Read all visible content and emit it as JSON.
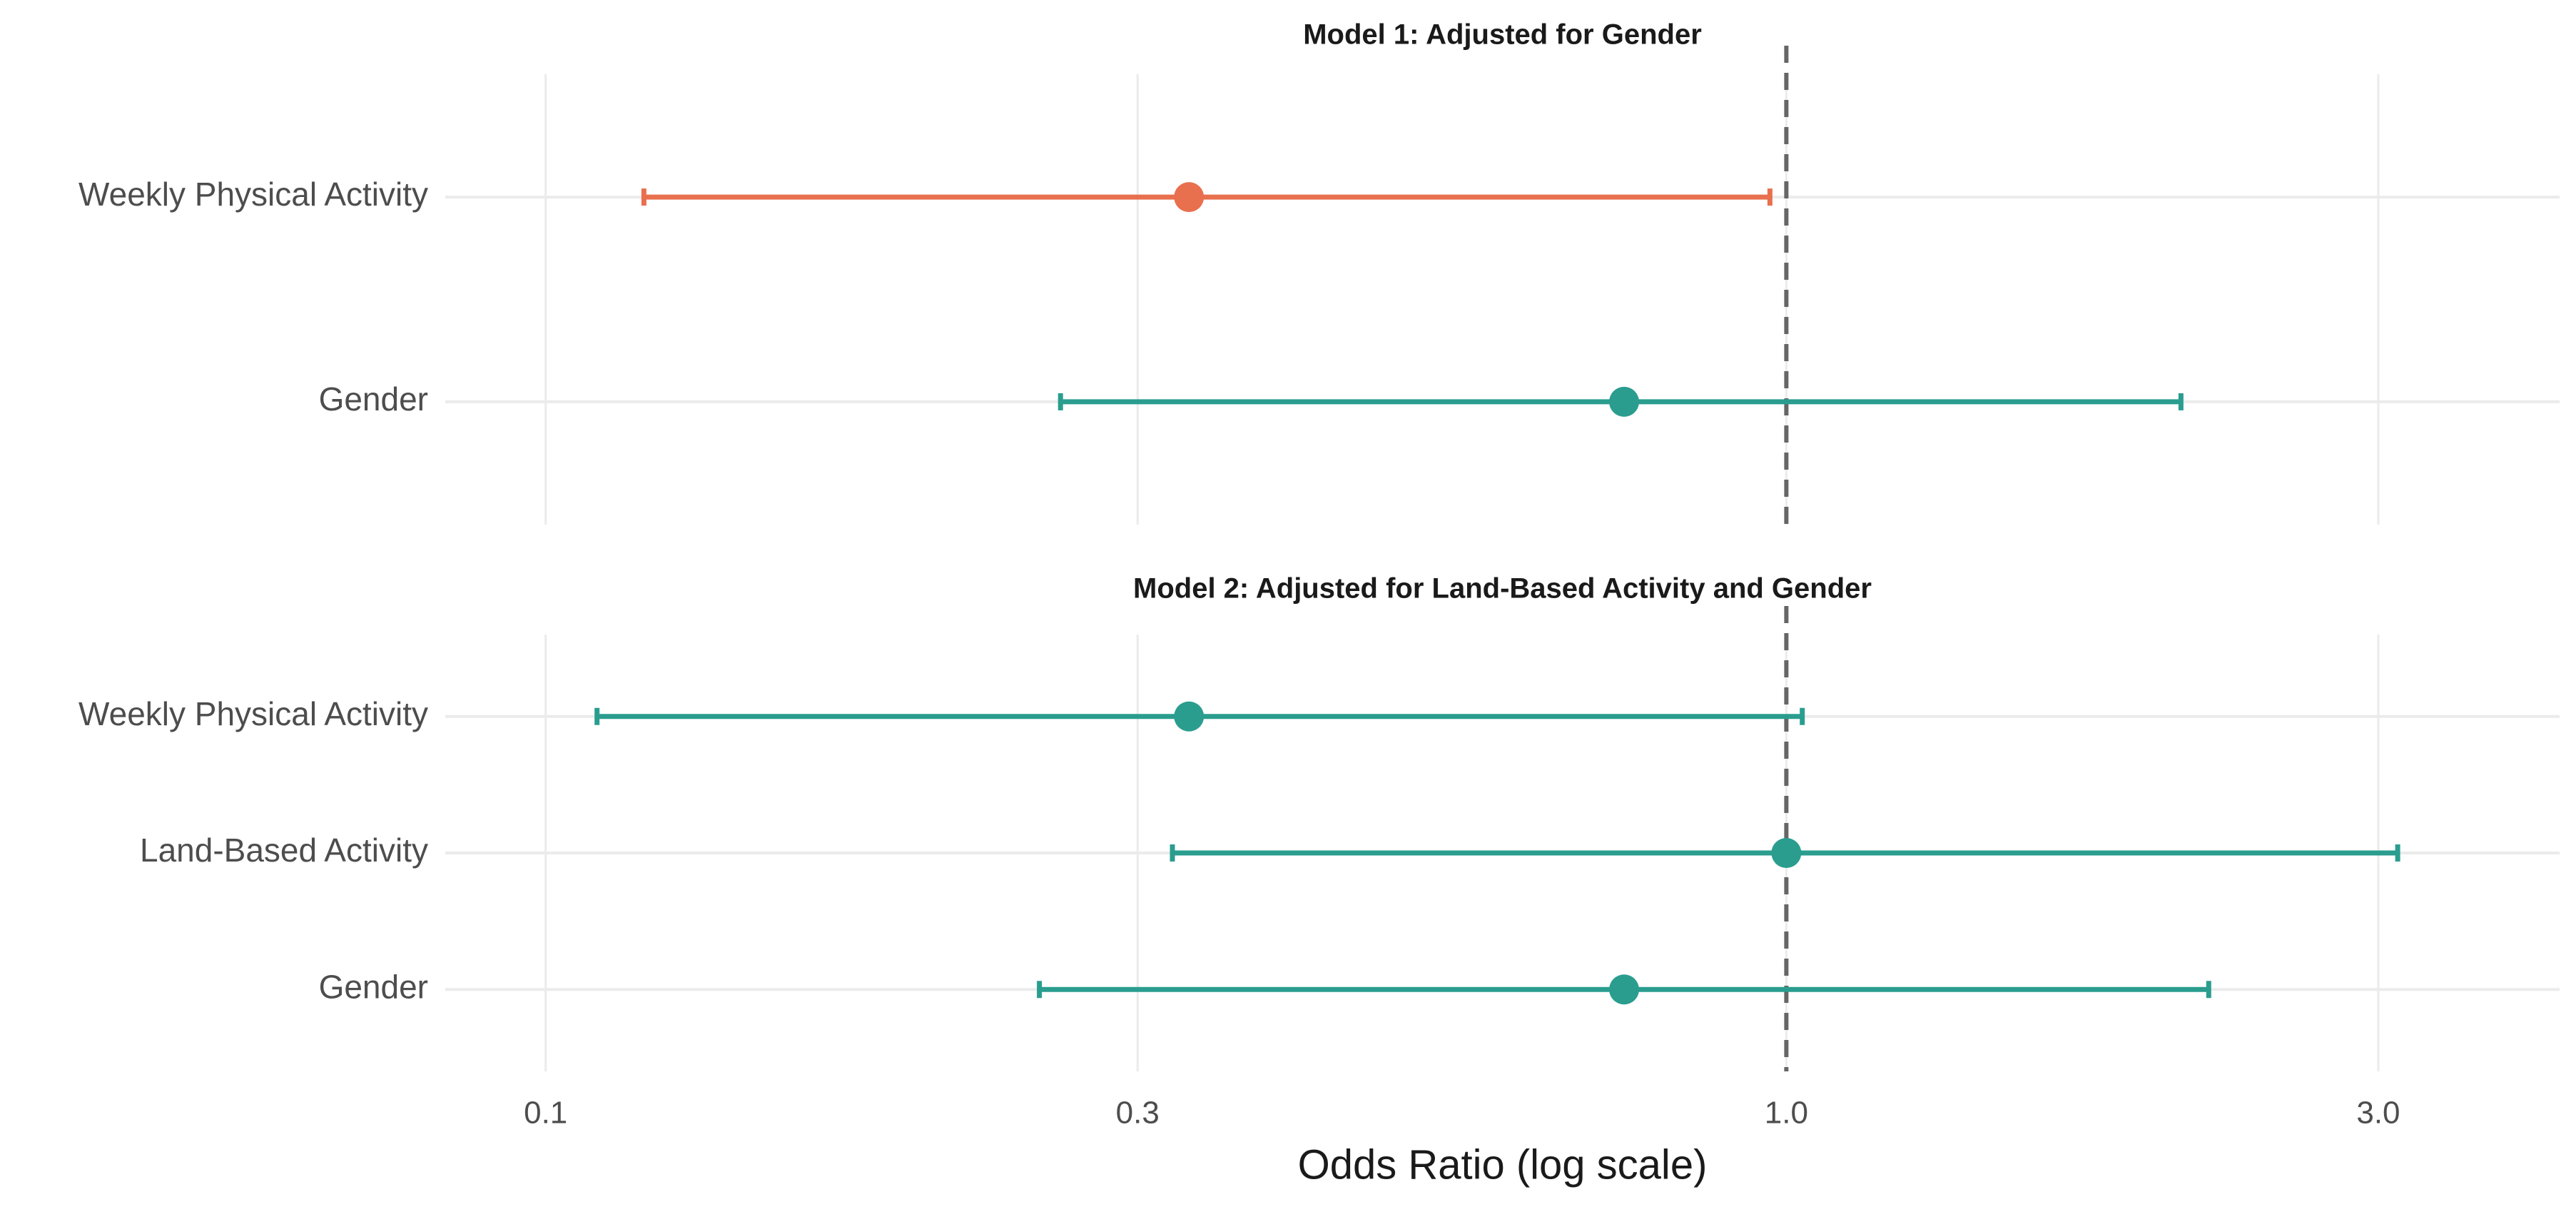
{
  "chart_data": {
    "type": "forest",
    "xlabel": "Odds Ratio (log scale)",
    "log_x": true,
    "xlim": [
      0.083,
      4.2
    ],
    "xticks": [
      0.1,
      0.3,
      {
        "value": 1,
        "label": "1.0"
      },
      {
        "value": 3,
        "label": "3.0"
      }
    ],
    "reference_line": 1,
    "grid": true,
    "panels": [
      {
        "title": "Model 1: Adjusted for Gender",
        "categories": [
          "Weekly Physical Activity",
          "Gender"
        ],
        "values": [
          0.33,
          0.74
        ],
        "lower": [
          0.12,
          0.26
        ],
        "upper": [
          0.97,
          2.08
        ],
        "colors": [
          "#e8704f",
          "#2a9d8f"
        ]
      },
      {
        "title": "Model 2: Adjusted for Land-Based Activity and Gender",
        "categories": [
          "Weekly Physical Activity",
          "Land-Based Activity",
          "Gender"
        ],
        "values": [
          0.33,
          1.0,
          0.74
        ],
        "lower": [
          0.11,
          0.32,
          0.25
        ],
        "upper": [
          1.03,
          3.11,
          2.19
        ],
        "colors": [
          "#2a9d8f",
          "#2a9d8f",
          "#2a9d8f"
        ]
      }
    ]
  }
}
